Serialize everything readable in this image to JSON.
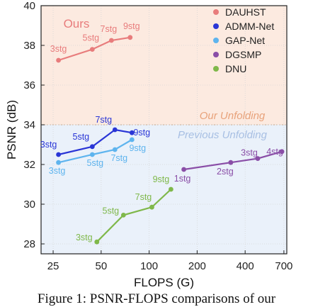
{
  "chart_data": {
    "type": "line",
    "title": "",
    "xlabel": "FLOPS (G)",
    "ylabel": "PSNR (dB)",
    "xscale": "log",
    "xlim": [
      21,
      730
    ],
    "ylim": [
      27.5,
      40
    ],
    "x_ticks": [
      25,
      50,
      100,
      200,
      400,
      700
    ],
    "x_tick_labels": [
      "25",
      "50",
      "100",
      "200",
      "400",
      "700"
    ],
    "y_ticks": [
      28,
      30,
      32,
      34,
      36,
      38,
      40
    ],
    "y_tick_labels": [
      "28",
      "30",
      "32",
      "34",
      "36",
      "38",
      "40"
    ],
    "grid": true,
    "legend_position": "top-right",
    "regions": [
      {
        "label": "Our Unfolding",
        "y_from": 34,
        "y_to": 40,
        "color": "#fbe3d6",
        "text_color": "#e8a27a"
      },
      {
        "label": "Previous Unfolding",
        "y_from": 27.5,
        "y_to": 34,
        "color": "#e3ecf8",
        "text_color": "#a7bfe3"
      }
    ],
    "boundary_y": 34,
    "ours_label": "Ours",
    "series": [
      {
        "name": "DAUHST",
        "color": "#e87c7c",
        "x": [
          27,
          44,
          58,
          76
        ],
        "y": [
          37.25,
          37.8,
          38.25,
          38.4
        ],
        "labels": [
          "3stg",
          "5stg",
          "7stg",
          "9stg"
        ]
      },
      {
        "name": "ADMM-Net",
        "color": "#2a36d6",
        "x": [
          27,
          44,
          61,
          78
        ],
        "y": [
          32.5,
          32.9,
          33.75,
          33.6
        ],
        "labels": [
          "3stg",
          "5stg",
          "7stg",
          "9stg"
        ]
      },
      {
        "name": "GAP-Net",
        "color": "#5eb4ee",
        "x": [
          27,
          44,
          61,
          78
        ],
        "y": [
          32.1,
          32.5,
          32.75,
          33.25
        ],
        "labels": [
          "3stg",
          "5stg",
          "7stg",
          "9stg"
        ]
      },
      {
        "name": "DGSMP",
        "color": "#8a4ea7",
        "x": [
          165,
          325,
          480,
          680
        ],
        "y": [
          31.75,
          32.1,
          32.3,
          32.65
        ],
        "labels": [
          "1stg",
          "2stg",
          "3stg",
          "4stg"
        ]
      },
      {
        "name": "DNU",
        "color": "#7fb84a",
        "x": [
          47,
          69,
          104,
          137
        ],
        "y": [
          28.1,
          29.45,
          29.85,
          30.75
        ],
        "labels": [
          "3stg",
          "5stg",
          "7stg",
          "9stg"
        ]
      }
    ]
  },
  "caption": "Figure 1: PSNR-FLOPS comparisons of our"
}
